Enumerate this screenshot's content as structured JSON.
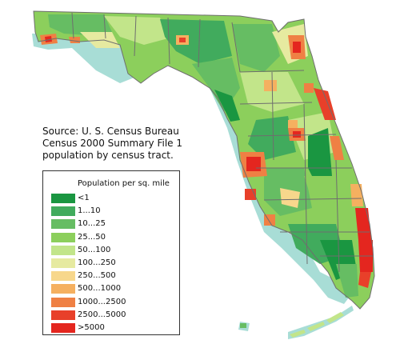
{
  "source_note": {
    "lines": [
      "Source: U. S. Census Bureau",
      "Census 2000 Summary File 1",
      "population by census tract."
    ]
  },
  "legend": {
    "title": "Population per sq. mile",
    "items": [
      {
        "label": "<1",
        "color": "#1a9641"
      },
      {
        "label": "1...10",
        "color": "#41ab5d"
      },
      {
        "label": "10...25",
        "color": "#66bd63"
      },
      {
        "label": "25...50",
        "color": "#8ccf5c"
      },
      {
        "label": "50...100",
        "color": "#c2e58a"
      },
      {
        "label": "100...250",
        "color": "#e6eaa0"
      },
      {
        "label": "250...500",
        "color": "#f7d78c"
      },
      {
        "label": "500...1000",
        "color": "#f5b060"
      },
      {
        "label": "1000...2500",
        "color": "#ef8044"
      },
      {
        "label": "2500...5000",
        "color": "#e8402a"
      },
      {
        "label": ">5000",
        "color": "#e4261f"
      }
    ]
  },
  "map": {
    "water_color": "#a8ddd6",
    "boundary_color": "#6e6e6e"
  }
}
